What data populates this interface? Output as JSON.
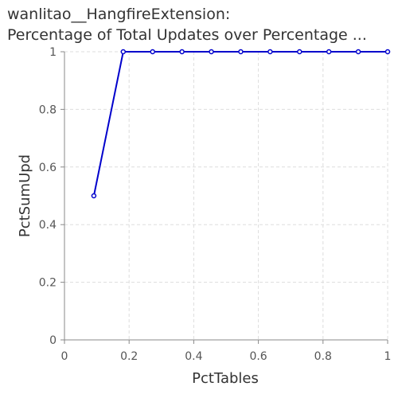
{
  "chart_data": {
    "type": "line",
    "title_line1": "wanlitao__HangfireExtension:",
    "title_line2": "Percentage of Total Updates over Percentage ...",
    "xlabel": "PctTables",
    "ylabel": "PctSumUpd",
    "xlim": [
      0,
      1
    ],
    "ylim": [
      0,
      1
    ],
    "x_ticks": [
      "0",
      "0.2",
      "0.4",
      "0.6",
      "0.8",
      "1"
    ],
    "y_ticks": [
      "0",
      "0.2",
      "0.4",
      "0.6",
      "0.8",
      "1"
    ],
    "grid": true,
    "series": [
      {
        "color": "#0000cc",
        "x": [
          0.0909,
          0.1818,
          0.2727,
          0.3636,
          0.4545,
          0.5455,
          0.6364,
          0.7273,
          0.8182,
          0.9091,
          1.0
        ],
        "y": [
          0.5,
          1,
          1,
          1,
          1,
          1,
          1,
          1,
          1,
          1,
          1
        ]
      }
    ]
  }
}
